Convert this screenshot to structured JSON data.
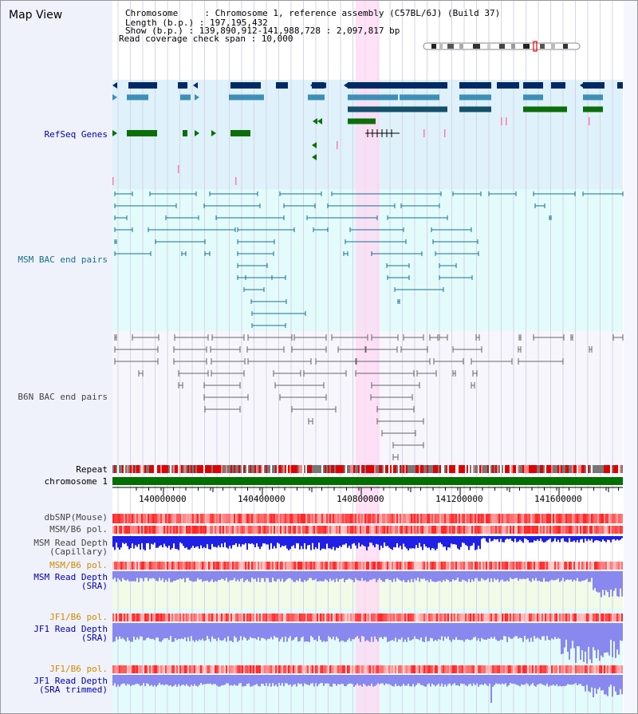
{
  "view": {
    "title": "Map View"
  },
  "info": {
    "line1": "Chromosome     : Chromosome 1, reference assembly (C57BL/6J) (Build 37)",
    "line2": "Length (b.p.) : 197,195,432",
    "line3": "Show (b.p.) : 139,890,912-141,988,728 : 2,097,817 bp",
    "line4": "Read coverage check span : 10,000"
  },
  "tracks": {
    "refseq": "RefSeq Genes",
    "msm_bac": "MSM BAC end pairs",
    "b6n_bac": "B6N BAC end pairs",
    "repeat": "Repeat",
    "chromosome": "chromosome 1",
    "dbsnp": "dbSNP(Mouse)",
    "msm_b6_pol": "MSM/B6 pol.",
    "msm_depth_cap": "MSM Read Depth\n(Capillary)",
    "msm_b6_pol_sra": "MSM/B6 pol.",
    "msm_depth_sra": "MSM Read Depth\n(SRA)",
    "jf1_b6_pol": "JF1/B6 pol.",
    "jf1_depth_sra": "JF1 Read Depth\n(SRA)",
    "jf1_b6_pol_trim": "JF1/B6 pol.",
    "jf1_depth_trim": "JF1 Read Depth\n(SRA trimmed)"
  },
  "axis": {
    "ticks": [
      "140000000",
      "140400000",
      "140800000",
      "141200000",
      "141600000"
    ]
  },
  "colors": {
    "refseq_bg": "#dff1fa",
    "msm_bg": "#e3fbfb",
    "b6n_bg": "#f6f6fc",
    "highlight": "#ffd8f3",
    "gene_dark": "#002a66",
    "gene_mid": "#3d8fb6",
    "gene_green": "#0b6e0b",
    "bac_teal": "#15708f",
    "bac_gray": "#666666",
    "depth_blue": "#1f1fe6",
    "depth_light": "#8888ee",
    "label_blue": "#0000aa",
    "label_orange": "#d08a00"
  }
}
